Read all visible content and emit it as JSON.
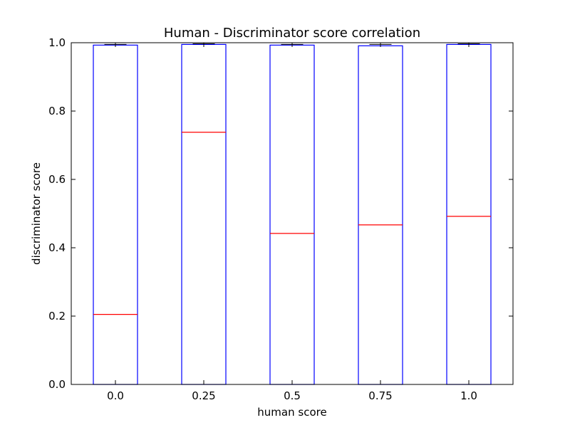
{
  "chart_data": {
    "type": "box",
    "title": "Human - Discriminator score correlation",
    "xlabel": "human score",
    "ylabel": "discriminator score",
    "ylim": [
      0.0,
      1.0
    ],
    "yticks": [
      "0.0",
      "0.2",
      "0.4",
      "0.6",
      "0.8",
      "1.0"
    ],
    "categories": [
      "0.0",
      "0.25",
      "0.5",
      "0.75",
      "1.0"
    ],
    "boxes": [
      {
        "category": "0.0",
        "q1": 0.0,
        "median": 0.205,
        "q3": 0.993,
        "min": 0.0,
        "max": 0.995
      },
      {
        "category": "0.25",
        "q1": 0.0,
        "median": 0.738,
        "q3": 0.995,
        "min": 0.0,
        "max": 0.997
      },
      {
        "category": "0.5",
        "q1": 0.0,
        "median": 0.442,
        "q3": 0.993,
        "min": 0.0,
        "max": 0.995
      },
      {
        "category": "0.75",
        "q1": 0.0,
        "median": 0.467,
        "q3": 0.991,
        "min": 0.0,
        "max": 0.995
      },
      {
        "category": "1.0",
        "q1": 0.0,
        "median": 0.492,
        "q3": 0.995,
        "min": 0.0,
        "max": 0.997
      }
    ],
    "grid": false,
    "legend": "none",
    "colors": {
      "box": "#0000ff",
      "median": "#ff0000",
      "axes": "#000000"
    }
  }
}
